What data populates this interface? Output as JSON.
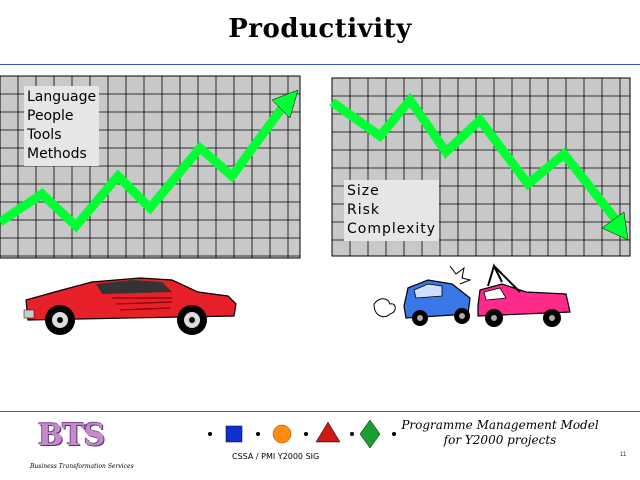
{
  "title": "Productivity",
  "left_panel": {
    "labels": [
      "Language",
      "People",
      "Tools",
      "Methods"
    ]
  },
  "right_panel": {
    "labels": [
      "Size",
      "Risk",
      "Complexity"
    ]
  },
  "footer": {
    "logo_text": "BTS",
    "org_name": "Business Transformation Services",
    "model_line1": "Programme Management Model",
    "model_line2": "for Y2000 projects",
    "sig": "CSSA / PMI Y2000 SIG",
    "page": "11"
  },
  "colors": {
    "grid_bg": "#c8c8c8",
    "grid_line": "#000000",
    "arrow": "#00ff33",
    "rule": "#3a5bd0",
    "car_red": "#e8202a",
    "tow_pink": "#ff2a8a",
    "small_car_blue": "#3a78e8"
  },
  "icons": [
    "sports-car-icon",
    "car-crash-tow-icon",
    "blue-square-icon",
    "orange-sphere-icon",
    "red-pyramid-icon",
    "green-diamond-icon"
  ]
}
